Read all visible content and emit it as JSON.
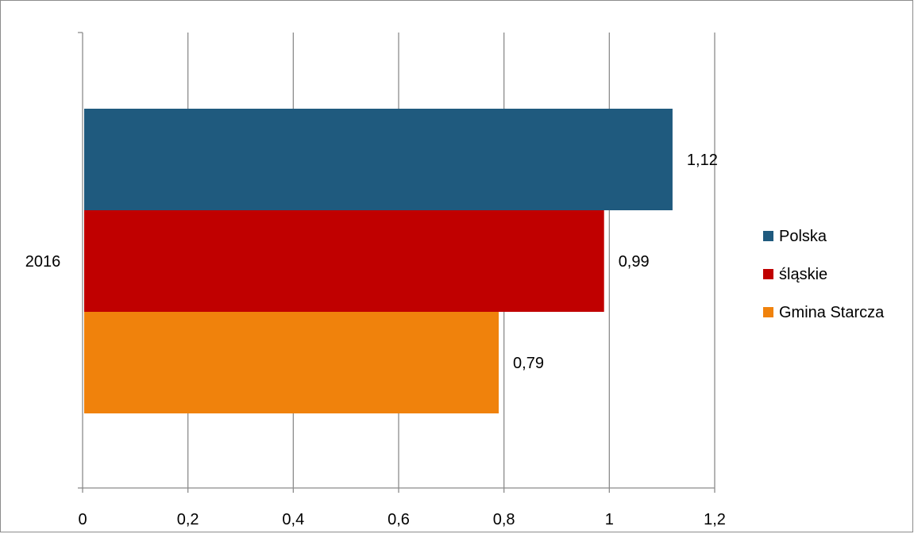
{
  "chart_data": {
    "type": "bar",
    "orientation": "horizontal",
    "categories": [
      "2016"
    ],
    "series": [
      {
        "name": "Polska",
        "values": [
          1.12
        ],
        "color": "#1f5a7e"
      },
      {
        "name": "śląskie",
        "values": [
          0.99
        ],
        "color": "#c00000"
      },
      {
        "name": "Gmina Starcza",
        "values": [
          0.79
        ],
        "color": "#f0820c"
      }
    ],
    "data_labels": [
      "1,12",
      "0,99",
      "0,79"
    ],
    "xlim": [
      0,
      1.2
    ],
    "x_ticks": [
      0,
      0.2,
      0.4,
      0.6,
      0.8,
      1,
      1.2
    ],
    "x_tick_labels": [
      "0",
      "0,2",
      "0,4",
      "0,6",
      "0,8",
      "1",
      "1,2"
    ],
    "grid": true,
    "legend_position": "right",
    "title": "",
    "xlabel": "",
    "ylabel": ""
  }
}
